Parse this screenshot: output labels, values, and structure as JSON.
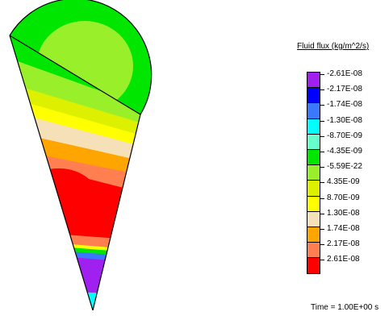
{
  "legend": {
    "title": "Fluid flux (kg/m^2/s)",
    "entries": [
      {
        "label": "-2.61E-08",
        "color": "#a020f0"
      },
      {
        "label": "-2.17E-08",
        "color": "#0000ff"
      },
      {
        "label": "-1.74E-08",
        "color": "#3a78ff"
      },
      {
        "label": "-1.30E-08",
        "color": "#00ffff"
      },
      {
        "label": "-8.70E-09",
        "color": "#66ffcc"
      },
      {
        "label": "-4.35E-09",
        "color": "#00e600"
      },
      {
        "label": "-5.59E-22",
        "color": "#99f02a"
      },
      {
        "label": "4.35E-09",
        "color": "#ddf000"
      },
      {
        "label": "8.70E-09",
        "color": "#ffff00"
      },
      {
        "label": "1.30E-08",
        "color": "#f5e0b8"
      },
      {
        "label": "1.74E-08",
        "color": "#ffa500"
      },
      {
        "label": "2.17E-08",
        "color": "#ff7f50"
      },
      {
        "label": "2.61E-08",
        "color": "#ff0000"
      }
    ]
  },
  "time": "Time = 1.00E+00 s"
}
